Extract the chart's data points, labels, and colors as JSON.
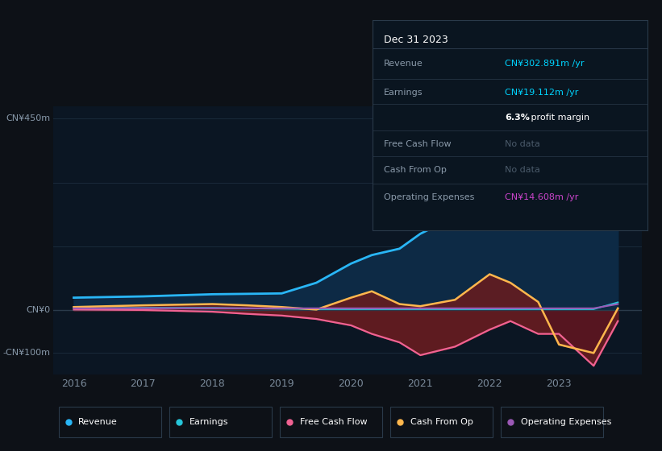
{
  "background_color": "#0d1117",
  "chart_bg": "#0b1623",
  "grid_color": "#1a2a3a",
  "years": [
    2016,
    2017,
    2018,
    2018.5,
    2019,
    2019.5,
    2020,
    2020.3,
    2020.7,
    2021,
    2021.5,
    2022,
    2022.3,
    2022.7,
    2023,
    2023.5,
    2023.85
  ],
  "revenue": [
    30,
    33,
    38,
    39,
    40,
    65,
    110,
    130,
    145,
    180,
    220,
    285,
    240,
    195,
    195,
    410,
    303
  ],
  "earnings": [
    5,
    6,
    6,
    5,
    4,
    3,
    3,
    3,
    3,
    3,
    3,
    3,
    3,
    3,
    3,
    3,
    19
  ],
  "free_cash_flow": [
    2,
    1,
    -3,
    -8,
    -12,
    -20,
    -35,
    -55,
    -75,
    -105,
    -85,
    -45,
    -25,
    -55,
    -55,
    -130,
    -25
  ],
  "cash_from_op": [
    8,
    12,
    15,
    12,
    8,
    2,
    30,
    45,
    15,
    10,
    25,
    85,
    65,
    20,
    -80,
    -100,
    5
  ],
  "operating_exp": [
    5,
    5,
    5,
    5,
    5,
    5,
    5,
    5,
    5,
    5,
    5,
    5,
    5,
    5,
    5,
    5,
    15
  ],
  "revenue_color": "#29b6f6",
  "earnings_color": "#26c6da",
  "fcf_color": "#f06292",
  "cfo_color": "#ffb74d",
  "opex_color": "#9b59b6",
  "revenue_fill": "#0d2a45",
  "dark_red_fill": "#5a1a1a",
  "ylim_min": -150,
  "ylim_max": 480,
  "xticks": [
    2016,
    2017,
    2018,
    2019,
    2020,
    2021,
    2022,
    2023
  ],
  "legend_items": [
    "Revenue",
    "Earnings",
    "Free Cash Flow",
    "Cash From Op",
    "Operating Expenses"
  ],
  "legend_colors": [
    "#29b6f6",
    "#26c6da",
    "#f06292",
    "#ffb74d",
    "#9b59b6"
  ],
  "info_box": {
    "date": "Dec 31 2023",
    "rows": [
      {
        "label": "Revenue",
        "value": "CN¥302.891m /yr",
        "value_color": "#00d4ff"
      },
      {
        "label": "Earnings",
        "value": "CN¥19.112m /yr",
        "value_color": "#00d4ff"
      },
      {
        "label": "",
        "value": "6.3%",
        "value_rest": " profit margin",
        "value_color": "#ffffff"
      },
      {
        "label": "Free Cash Flow",
        "value": "No data",
        "value_color": "#4a5a6a"
      },
      {
        "label": "Cash From Op",
        "value": "No data",
        "value_color": "#4a5a6a"
      },
      {
        "label": "Operating Expenses",
        "value": "CN¥14.608m /yr",
        "value_color": "#cc44cc"
      }
    ]
  }
}
